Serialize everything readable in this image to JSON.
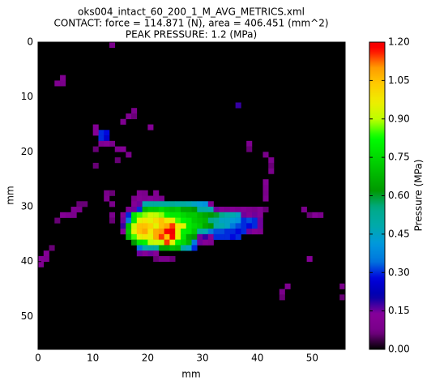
{
  "chart_data": {
    "type": "heatmap",
    "title_lines": [
      "oks004_intact_60_200_1_M_AVG_METRICS.xml",
      "CONTACT: force = 114.871 (N), area = 406.451 (mm^2)",
      "PEAK PRESSURE: 1.2 (MPa)"
    ],
    "xlabel": "mm",
    "ylabel": "mm",
    "colorbar_label": "Pressure (MPa)",
    "colormap": "nipy_spectral",
    "xlim": [
      0,
      56
    ],
    "ylim": [
      56,
      0
    ],
    "xticks": [
      0,
      10,
      20,
      30,
      40,
      50
    ],
    "yticks": [
      0,
      10,
      20,
      30,
      40,
      50
    ],
    "clim": [
      0,
      1.2
    ],
    "cticks": [
      {
        "value": 0,
        "label": "0.00"
      },
      {
        "value": 0.15,
        "label": "0.15"
      },
      {
        "value": 0.3,
        "label": "0.30"
      },
      {
        "value": 0.45,
        "label": "0.45"
      },
      {
        "value": 0.6,
        "label": "0.60"
      },
      {
        "value": 0.75,
        "label": "0.75"
      },
      {
        "value": 0.9,
        "label": "0.90"
      },
      {
        "value": 1.05,
        "label": "1.05"
      },
      {
        "value": 1.2,
        "label": "1.20"
      }
    ],
    "x": [
      13,
      4,
      3,
      4,
      17,
      16,
      17,
      15,
      10,
      11,
      12,
      11,
      12,
      10,
      11,
      12,
      13,
      14,
      15,
      16,
      14,
      10,
      10,
      20,
      36,
      38,
      38,
      41,
      42,
      42,
      42,
      41,
      41,
      41,
      41,
      48,
      49,
      50,
      51,
      49,
      45,
      44,
      44,
      55,
      55,
      2,
      1,
      0,
      1,
      0,
      7,
      8,
      6,
      7,
      4,
      5,
      6,
      3,
      12,
      13,
      12,
      13,
      13,
      13,
      18,
      19,
      21,
      17,
      18,
      19,
      20,
      21,
      22,
      17,
      18,
      19,
      20,
      21,
      22,
      23,
      24,
      25,
      26,
      27,
      28,
      29,
      30,
      31,
      16,
      17,
      18,
      19,
      20,
      21,
      22,
      23,
      24,
      25,
      26,
      27,
      28,
      29,
      30,
      31,
      32,
      33,
      34,
      35,
      36,
      37,
      38,
      39,
      40,
      41,
      15,
      16,
      17,
      18,
      19,
      20,
      21,
      22,
      23,
      24,
      25,
      26,
      27,
      28,
      29,
      30,
      31,
      32,
      33,
      34,
      35,
      36,
      37,
      38,
      39,
      40,
      15,
      16,
      17,
      18,
      19,
      20,
      21,
      22,
      23,
      24,
      25,
      26,
      27,
      28,
      29,
      30,
      31,
      32,
      33,
      34,
      35,
      36,
      37,
      38,
      39,
      40,
      15,
      16,
      17,
      18,
      19,
      20,
      21,
      22,
      23,
      24,
      25,
      26,
      27,
      28,
      29,
      30,
      31,
      32,
      33,
      34,
      35,
      36,
      37,
      38,
      39,
      40,
      15,
      16,
      17,
      18,
      19,
      20,
      21,
      22,
      23,
      24,
      25,
      26,
      27,
      28,
      29,
      30,
      31,
      32,
      33,
      34,
      35,
      36,
      37,
      38,
      39,
      40,
      16,
      17,
      18,
      19,
      20,
      21,
      22,
      23,
      24,
      25,
      26,
      27,
      28,
      29,
      30,
      31,
      32,
      33,
      34,
      35,
      36,
      17,
      18,
      19,
      20,
      21,
      22,
      23,
      24,
      25,
      26,
      27,
      28,
      29,
      30,
      31,
      18,
      19,
      20,
      21,
      22,
      23,
      24,
      25,
      26,
      27,
      28,
      18,
      19,
      20,
      21,
      21,
      22,
      23,
      24
    ],
    "y": [
      0,
      6,
      7,
      7,
      12,
      13,
      13,
      14,
      15,
      16,
      16,
      17,
      17,
      16,
      18,
      18,
      18,
      19,
      19,
      20,
      21,
      19,
      22,
      15,
      11,
      18,
      19,
      20,
      21,
      22,
      23,
      25,
      26,
      27,
      28,
      30,
      31,
      31,
      31,
      39,
      44,
      45,
      46,
      44,
      46,
      37,
      38,
      39,
      39,
      40,
      29,
      29,
      30,
      30,
      31,
      31,
      31,
      32,
      27,
      27,
      28,
      29,
      31,
      32,
      27,
      27,
      27,
      28,
      28,
      28,
      28,
      28,
      28,
      29,
      29,
      29,
      29,
      29,
      29,
      29,
      29,
      29,
      29,
      29,
      29,
      29,
      29,
      29,
      30,
      30,
      30,
      30,
      30,
      30,
      30,
      30,
      30,
      30,
      30,
      30,
      30,
      30,
      30,
      30,
      30,
      30,
      30,
      30,
      30,
      30,
      30,
      30,
      30,
      30,
      31,
      31,
      31,
      31,
      31,
      31,
      31,
      31,
      31,
      31,
      31,
      31,
      31,
      31,
      31,
      31,
      31,
      31,
      31,
      31,
      31,
      31,
      31,
      31,
      31,
      31,
      32,
      32,
      32,
      32,
      32,
      32,
      32,
      32,
      32,
      32,
      32,
      32,
      32,
      32,
      32,
      32,
      32,
      32,
      32,
      32,
      32,
      32,
      32,
      32,
      32,
      32,
      33,
      33,
      33,
      33,
      33,
      33,
      33,
      33,
      33,
      33,
      33,
      33,
      33,
      33,
      33,
      33,
      33,
      33,
      33,
      33,
      33,
      33,
      33,
      33,
      33,
      33,
      34,
      34,
      34,
      34,
      34,
      34,
      34,
      34,
      34,
      34,
      34,
      34,
      34,
      34,
      34,
      34,
      34,
      34,
      34,
      34,
      34,
      34,
      34,
      34,
      34,
      34,
      35,
      35,
      35,
      35,
      35,
      35,
      35,
      35,
      35,
      35,
      35,
      35,
      35,
      35,
      35,
      35,
      35,
      35,
      35,
      35,
      35,
      36,
      36,
      36,
      36,
      36,
      36,
      36,
      36,
      36,
      36,
      36,
      36,
      36,
      36,
      36,
      37,
      37,
      37,
      37,
      37,
      37,
      37,
      37,
      37,
      37,
      37,
      38,
      38,
      38,
      38,
      39,
      39,
      39,
      39
    ],
    "values": [
      0.08,
      0.1,
      0.1,
      0.08,
      0.08,
      0.1,
      0.06,
      0.1,
      0.12,
      0.3,
      0.28,
      0.3,
      0.25,
      0.12,
      0.1,
      0.12,
      0.08,
      0.1,
      0.12,
      0.08,
      0.06,
      0.06,
      0.06,
      0.12,
      0.18,
      0.1,
      0.06,
      0.08,
      0.1,
      0.06,
      0.08,
      0.12,
      0.1,
      0.08,
      0.1,
      0.08,
      0.06,
      0.12,
      0.08,
      0.12,
      0.1,
      0.08,
      0.06,
      0.08,
      0.06,
      0.06,
      0.12,
      0.12,
      0.1,
      0.1,
      0.06,
      0.06,
      0.1,
      0.08,
      0.12,
      0.1,
      0.08,
      0.06,
      0.08,
      0.06,
      0.1,
      0.08,
      0.08,
      0.06,
      0.1,
      0.08,
      0.1,
      0.08,
      0.12,
      0.1,
      0.12,
      0.1,
      0.08,
      0.12,
      0.15,
      0.48,
      0.5,
      0.5,
      0.5,
      0.5,
      0.52,
      0.5,
      0.5,
      0.48,
      0.45,
      0.42,
      0.4,
      0.1,
      0.1,
      0.15,
      0.3,
      0.68,
      0.72,
      0.72,
      0.75,
      0.72,
      0.7,
      0.72,
      0.65,
      0.65,
      0.62,
      0.5,
      0.5,
      0.48,
      0.15,
      0.12,
      0.1,
      0.12,
      0.1,
      0.12,
      0.1,
      0.08,
      0.12,
      0.06,
      0.12,
      0.3,
      0.78,
      0.85,
      0.88,
      0.92,
      0.9,
      0.88,
      0.8,
      0.78,
      0.78,
      0.75,
      0.72,
      0.72,
      0.68,
      0.65,
      0.62,
      0.6,
      0.55,
      0.5,
      0.48,
      0.45,
      0.15,
      0.12,
      0.15,
      0.12,
      0.15,
      0.35,
      0.78,
      0.95,
      0.98,
      0.95,
      1.0,
      1.05,
      0.98,
      0.95,
      0.85,
      0.8,
      0.78,
      0.72,
      0.7,
      0.68,
      0.55,
      0.52,
      0.45,
      0.45,
      0.42,
      0.4,
      0.3,
      0.32,
      0.3,
      0.15,
      0.18,
      0.7,
      0.92,
      1.05,
      1.05,
      1.02,
      0.95,
      1.05,
      1.08,
      1.15,
      0.98,
      0.95,
      0.78,
      0.75,
      0.72,
      0.65,
      0.62,
      0.5,
      0.48,
      0.45,
      0.35,
      0.32,
      0.3,
      0.28,
      0.3,
      0.15,
      0.12,
      0.72,
      0.95,
      1.05,
      1.08,
      0.98,
      1.08,
      1.1,
      1.18,
      1.2,
      0.95,
      0.8,
      0.78,
      0.72,
      0.5,
      0.48,
      0.35,
      0.32,
      0.32,
      0.3,
      0.3,
      0.28,
      0.3,
      0.15,
      0.12,
      0.1,
      0.68,
      0.85,
      0.95,
      0.98,
      0.95,
      1.08,
      1.15,
      1.05,
      1.18,
      0.95,
      0.78,
      0.65,
      0.62,
      0.15,
      0.18,
      0.12,
      0.3,
      0.3,
      0.3,
      0.28,
      0.3,
      0.62,
      0.78,
      0.8,
      0.9,
      0.92,
      0.9,
      1.15,
      0.95,
      0.8,
      0.75,
      0.68,
      0.35,
      0.15,
      0.12,
      0.1,
      0.35,
      0.48,
      0.5,
      0.5,
      0.65,
      0.65,
      0.7,
      0.68,
      0.5,
      0.45,
      0.3,
      0.15,
      0.12,
      0.15,
      0.12,
      0.06,
      0.08,
      0.08,
      0.06
    ]
  }
}
